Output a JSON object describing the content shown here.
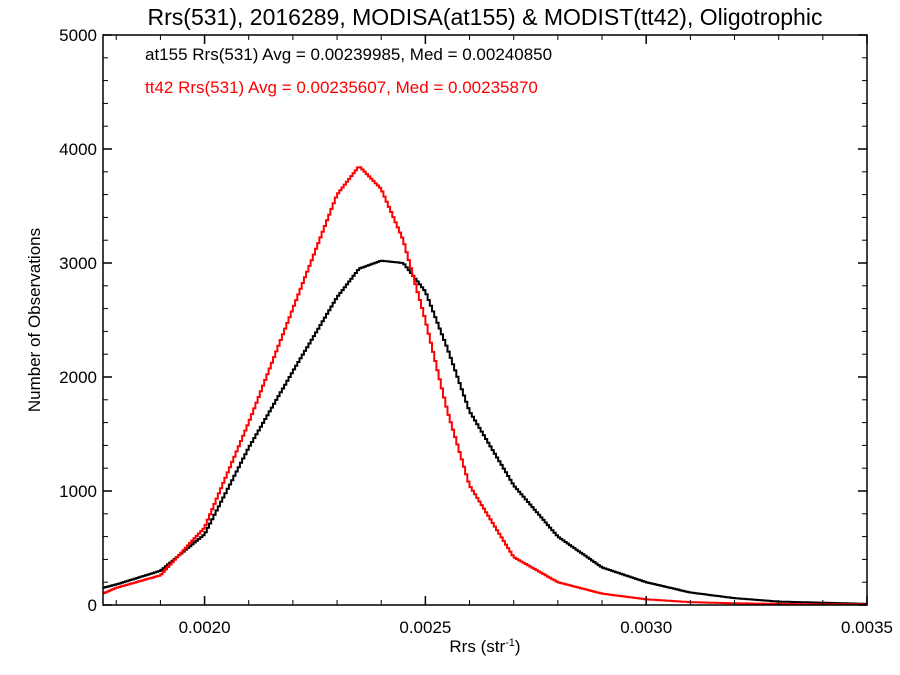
{
  "chart_data": {
    "type": "line",
    "step": true,
    "title": "Rrs(531), 2016289, MODISA(at155) & MODIST(tt42), Oligotrophic",
    "xlabel_main": "Rrs (str",
    "xlabel_sup": "-1",
    "xlabel_close": ")",
    "ylabel": "Number of Observations",
    "xlim": [
      0.00177,
      0.0035
    ],
    "ylim": [
      0,
      5000
    ],
    "x_ticks": [
      0.002,
      0.0025,
      0.003,
      0.0035
    ],
    "x_tick_labels": [
      "0.0020",
      "0.0025",
      "0.0030",
      "0.0035"
    ],
    "y_ticks": [
      0,
      1000,
      2000,
      3000,
      4000,
      5000
    ],
    "y_tick_labels": [
      "0",
      "1000",
      "2000",
      "3000",
      "4000",
      "5000"
    ],
    "grid": false,
    "annotations": [
      {
        "text": "at155 Rrs(531) Avg = 0.00239985, Med = 0.00240850",
        "color": "#000000"
      },
      {
        "text": "tt42 Rrs(531) Avg = 0.00235607, Med = 0.00235870",
        "color": "#ff0000"
      }
    ],
    "series": [
      {
        "color": "#000000",
        "x": [
          0.00177,
          0.0018,
          0.0019,
          0.002,
          0.0021,
          0.0022,
          0.0023,
          0.00235,
          0.0024,
          0.00245,
          0.0025,
          0.00255,
          0.0026,
          0.0027,
          0.0028,
          0.0029,
          0.003,
          0.0031,
          0.0032,
          0.0033,
          0.0034,
          0.0035
        ],
        "y": [
          150,
          180,
          300,
          620,
          1380,
          2050,
          2700,
          2950,
          3020,
          3000,
          2750,
          2250,
          1700,
          1050,
          600,
          330,
          200,
          110,
          60,
          30,
          20,
          10
        ]
      },
      {
        "color": "#ff0000",
        "x": [
          0.00177,
          0.0018,
          0.0019,
          0.002,
          0.0021,
          0.0022,
          0.0023,
          0.00235,
          0.0024,
          0.00245,
          0.0025,
          0.00255,
          0.0026,
          0.0027,
          0.0028,
          0.0029,
          0.003,
          0.0031,
          0.0032,
          0.0033,
          0.0034,
          0.0035
        ],
        "y": [
          100,
          150,
          260,
          680,
          1600,
          2600,
          3600,
          3850,
          3650,
          3200,
          2500,
          1700,
          1050,
          420,
          200,
          100,
          50,
          25,
          15,
          10,
          5,
          5
        ]
      }
    ]
  }
}
